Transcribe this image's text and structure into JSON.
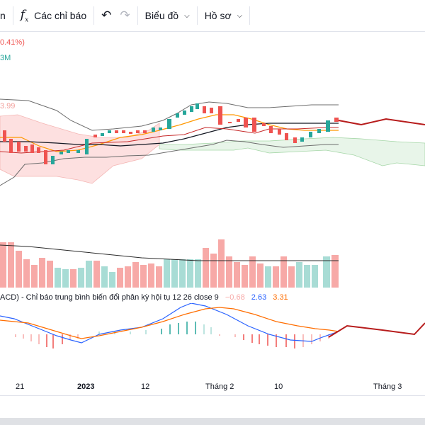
{
  "toolbar": {
    "partial_label": "n",
    "indicators_label": "Các chỉ báo",
    "chart_type_label": "Biểu đồ",
    "profile_label": "Hồ sơ"
  },
  "legend": {
    "change": "0.41%)",
    "volume_suffix": "3M",
    "price_label": "3.99"
  },
  "macd": {
    "prefix": "ACD) - Chỉ báo trung bình biến đổi phân kỳ hội tụ 12 26 close 9",
    "hist": "−0.68",
    "macd_value": "2.63",
    "signal_value": "3.31",
    "colors": {
      "hist": "#f7a9a7",
      "macd": "#2962ff",
      "signal": "#ff6d00"
    }
  },
  "x_axis": [
    "21",
    "2023",
    "12",
    "Tháng 2",
    "10",
    "Tháng 3"
  ],
  "colors": {
    "up": "#26a69a",
    "down": "#ef5350",
    "ichimoku_bull_cloud": "#e8f5e9",
    "ichimoku_bear_cloud": "#fde0e0",
    "forecast_line": "#b71c1c"
  }
}
